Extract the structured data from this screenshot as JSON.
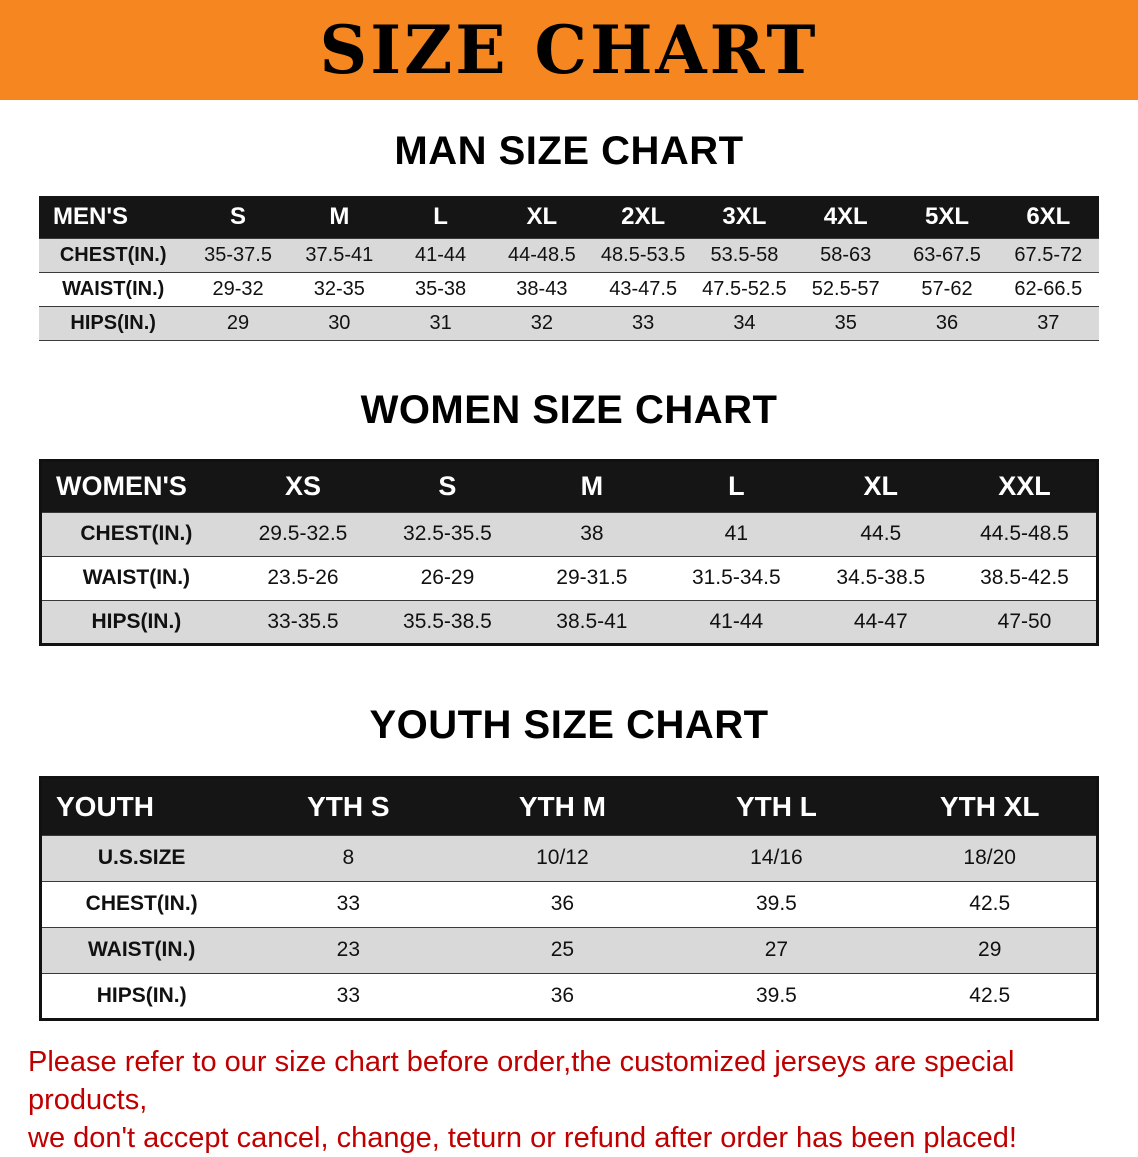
{
  "banner": {
    "title": "SIZE CHART"
  },
  "colors": {
    "banner_bg": "#F6861F",
    "header_bg": "#151515",
    "row_alt": "#D9D9D9",
    "disclaimer": "#C00000"
  },
  "sections": [
    {
      "id": "men",
      "heading": "MAN SIZE CHART",
      "table": {
        "header_label": "MEN'S",
        "columns": [
          "S",
          "M",
          "L",
          "XL",
          "2XL",
          "3XL",
          "4XL",
          "5XL",
          "6XL"
        ],
        "rows": [
          {
            "label": "CHEST(IN.)",
            "values": [
              "35-37.5",
              "37.5-41",
              "41-44",
              "44-48.5",
              "48.5-53.5",
              "53.5-58",
              "58-63",
              "63-67.5",
              "67.5-72"
            ]
          },
          {
            "label": "WAIST(IN.)",
            "values": [
              "29-32",
              "32-35",
              "35-38",
              "38-43",
              "43-47.5",
              "47.5-52.5",
              "52.5-57",
              "57-62",
              "62-66.5"
            ]
          },
          {
            "label": "HIPS(IN.)",
            "values": [
              "29",
              "30",
              "31",
              "32",
              "33",
              "34",
              "35",
              "36",
              "37"
            ]
          }
        ]
      }
    },
    {
      "id": "women",
      "heading": "WOMEN SIZE CHART",
      "table": {
        "header_label": "WOMEN'S",
        "columns": [
          "XS",
          "S",
          "M",
          "L",
          "XL",
          "XXL"
        ],
        "rows": [
          {
            "label": "CHEST(IN.)",
            "values": [
              "29.5-32.5",
              "32.5-35.5",
              "38",
              "41",
              "44.5",
              "44.5-48.5"
            ]
          },
          {
            "label": "WAIST(IN.)",
            "values": [
              "23.5-26",
              "26-29",
              "29-31.5",
              "31.5-34.5",
              "34.5-38.5",
              "38.5-42.5"
            ]
          },
          {
            "label": "HIPS(IN.)",
            "values": [
              "33-35.5",
              "35.5-38.5",
              "38.5-41",
              "41-44",
              "44-47",
              "47-50"
            ]
          }
        ]
      }
    },
    {
      "id": "youth",
      "heading": "YOUTH SIZE CHART",
      "table": {
        "header_label": "YOUTH",
        "columns": [
          "YTH S",
          "YTH M",
          "YTH L",
          "YTH XL"
        ],
        "rows": [
          {
            "label": "U.S.SIZE",
            "values": [
              "8",
              "10/12",
              "14/16",
              "18/20"
            ]
          },
          {
            "label": "CHEST(IN.)",
            "values": [
              "33",
              "36",
              "39.5",
              "42.5"
            ]
          },
          {
            "label": "WAIST(IN.)",
            "values": [
              "23",
              "25",
              "27",
              "29"
            ]
          },
          {
            "label": "HIPS(IN.)",
            "values": [
              "33",
              "36",
              "39.5",
              "42.5"
            ]
          }
        ]
      }
    }
  ],
  "disclaimer": {
    "line1": "Please refer to our size chart before order,the customized jerseys are special products,",
    "line2": "we don't accept cancel, change, teturn or refund after order has been placed!"
  }
}
